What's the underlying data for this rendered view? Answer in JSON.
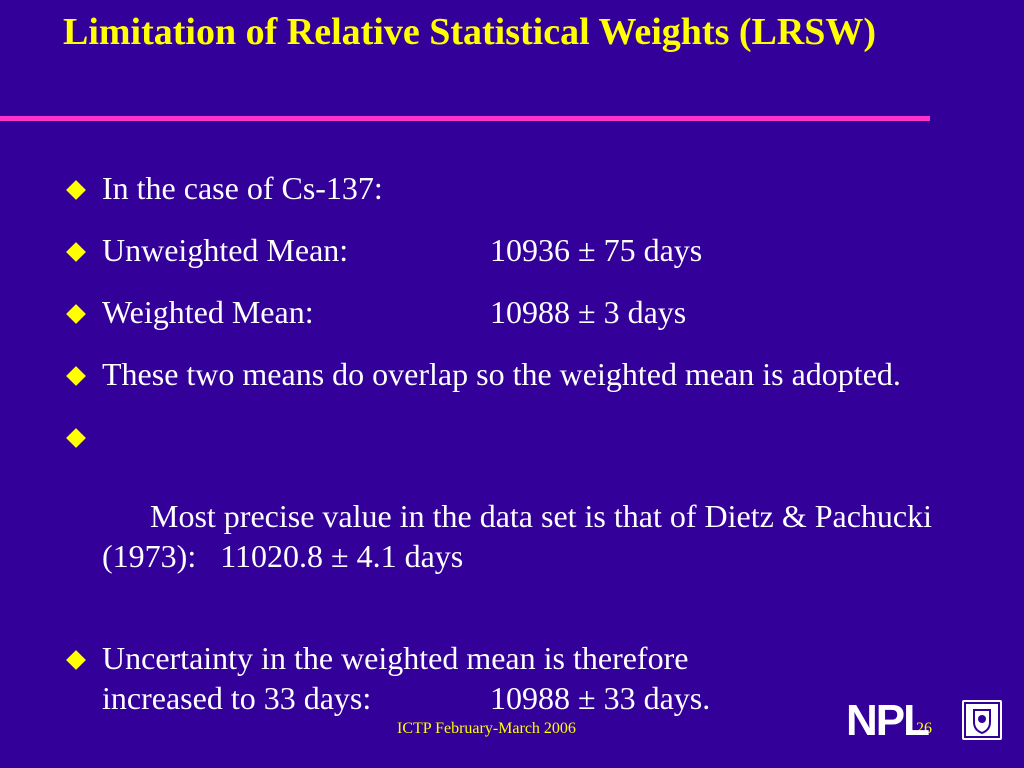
{
  "slide": {
    "title": "Limitation of Relative Statistical Weights (LRSW)",
    "bullets": [
      {
        "text": "In the case of Cs-137:"
      },
      {
        "label": "Unweighted Mean:",
        "value": "10936 ± 75 days"
      },
      {
        "label": "Weighted Mean:",
        "value": "10988 ± 3 days"
      },
      {
        "text": "These two means do overlap so the weighted mean is adopted."
      },
      {
        "text": "Most precise value in the data set is that of Dietz & Pachucki (1973):   11020.8 ± 4.1 days"
      },
      {
        "line1": "Uncertainty in the weighted mean is therefore",
        "label": "increased to 33 days:",
        "value": "10988 ± 33 days."
      }
    ],
    "footer": "ICTP February-March 2006",
    "page_number": "26",
    "logo_text": "NPL",
    "colors": {
      "background": "#330099",
      "title": "#FFFF00",
      "rule": "#FF33CC",
      "body_text": "#FFFFFF",
      "bullet": "#FFFF00"
    }
  }
}
